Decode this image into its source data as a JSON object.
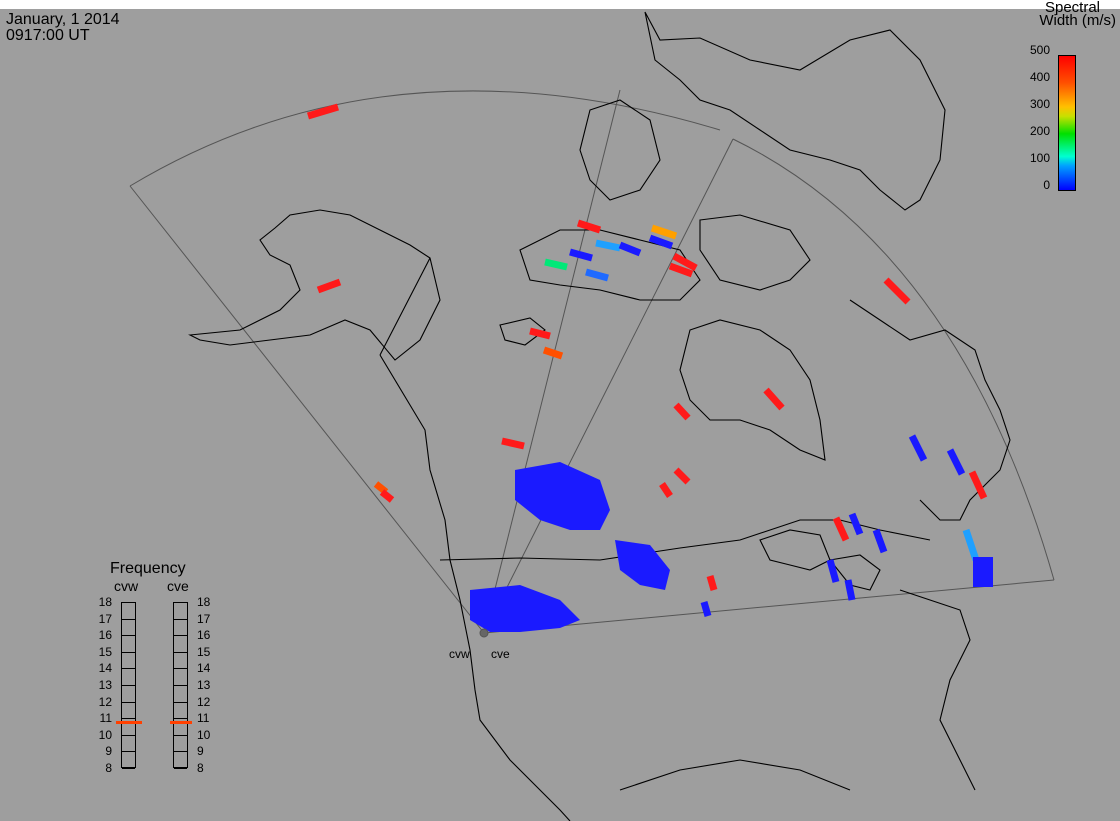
{
  "header": {
    "date": "January, 1 2014",
    "time": "0917:00 UT"
  },
  "colorbar": {
    "title_line1": "Spectral",
    "title_line2": "Width (m/s)",
    "ticks": [
      "500",
      "400",
      "300",
      "200",
      "100",
      "0"
    ],
    "range": [
      0,
      500
    ],
    "colors": [
      "#0000ff",
      "#00a0ff",
      "#00ffd0",
      "#00e000",
      "#ffc000",
      "#ff5000",
      "#ff0000"
    ]
  },
  "frequency": {
    "title": "Frequency",
    "radars": [
      {
        "name": "cvw",
        "value_mhz": 10.8
      },
      {
        "name": "cve",
        "value_mhz": 10.8
      }
    ],
    "ticks": [
      "18",
      "17",
      "16",
      "15",
      "14",
      "13",
      "12",
      "11",
      "10",
      "9",
      "8"
    ],
    "range": [
      8,
      18
    ]
  },
  "stations": [
    "cvw",
    "cve"
  ],
  "colors": {
    "background": "#9e9e9e",
    "coast": "#000000",
    "fov": "#555555",
    "low": "#1a1aff",
    "high": "#ff1a1a"
  }
}
